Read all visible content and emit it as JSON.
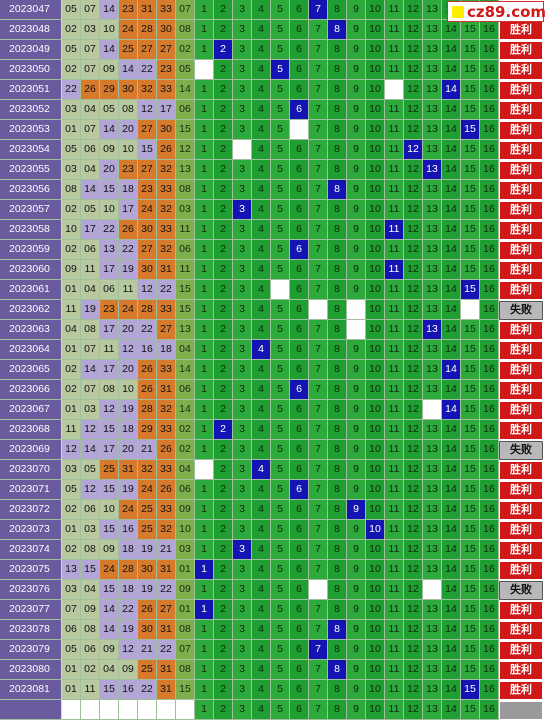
{
  "logo": {
    "text": "cz89.com"
  },
  "labels": {
    "win": "胜利",
    "lose": "失败"
  },
  "column_numbers": [
    "1",
    "2",
    "3",
    "4",
    "5",
    "6",
    "7",
    "8",
    "9",
    "10",
    "11",
    "12",
    "13",
    "14",
    "15",
    "16"
  ],
  "rows": [
    {
      "period": "2023047",
      "nums": [
        "05",
        "07",
        "14",
        "23",
        "31",
        "33",
        "07"
      ],
      "hit": 7,
      "result": "win"
    },
    {
      "period": "2023048",
      "nums": [
        "02",
        "03",
        "10",
        "24",
        "28",
        "30",
        "08"
      ],
      "hit": 8,
      "result": "win"
    },
    {
      "period": "2023049",
      "nums": [
        "05",
        "07",
        "14",
        "25",
        "27",
        "27",
        "02"
      ],
      "hit": 2,
      "result": "win"
    },
    {
      "period": "2023050",
      "nums": [
        "02",
        "07",
        "09",
        "14",
        "22",
        "23",
        "05"
      ],
      "hit": 5,
      "result": "win"
    },
    {
      "period": "2023051",
      "nums": [
        "22",
        "26",
        "29",
        "30",
        "32",
        "33",
        "14"
      ],
      "hit": 14,
      "result": "win"
    },
    {
      "period": "2023052",
      "nums": [
        "03",
        "04",
        "05",
        "08",
        "12",
        "17",
        "06"
      ],
      "hit": 6,
      "result": "win"
    },
    {
      "period": "2023053",
      "nums": [
        "01",
        "07",
        "14",
        "20",
        "27",
        "30",
        "15"
      ],
      "hit": 15,
      "result": "win"
    },
    {
      "period": "2023054",
      "nums": [
        "05",
        "06",
        "09",
        "10",
        "15",
        "26",
        "12"
      ],
      "hit": 12,
      "result": "win"
    },
    {
      "period": "2023055",
      "nums": [
        "03",
        "04",
        "20",
        "23",
        "27",
        "32",
        "13"
      ],
      "hit": 13,
      "result": "win"
    },
    {
      "period": "2023056",
      "nums": [
        "08",
        "14",
        "15",
        "18",
        "23",
        "33",
        "08"
      ],
      "hit": 8,
      "result": "win"
    },
    {
      "period": "2023057",
      "nums": [
        "02",
        "05",
        "10",
        "17",
        "24",
        "32",
        "03"
      ],
      "hit": 3,
      "result": "win"
    },
    {
      "period": "2023058",
      "nums": [
        "10",
        "17",
        "22",
        "26",
        "30",
        "33",
        "11"
      ],
      "hit": 11,
      "result": "win"
    },
    {
      "period": "2023059",
      "nums": [
        "02",
        "06",
        "13",
        "22",
        "27",
        "32",
        "06"
      ],
      "hit": 6,
      "result": "win"
    },
    {
      "period": "2023060",
      "nums": [
        "09",
        "11",
        "17",
        "19",
        "30",
        "31",
        "11"
      ],
      "hit": 11,
      "result": "win"
    },
    {
      "period": "2023061",
      "nums": [
        "01",
        "04",
        "06",
        "11",
        "12",
        "22",
        "15"
      ],
      "hit": 15,
      "result": "win"
    },
    {
      "period": "2023062",
      "nums": [
        "11",
        "19",
        "23",
        "24",
        "28",
        "33",
        "15"
      ],
      "hit": 0,
      "result": "lose"
    },
    {
      "period": "2023063",
      "nums": [
        "04",
        "08",
        "17",
        "20",
        "22",
        "27",
        "13"
      ],
      "hit": 13,
      "result": "win"
    },
    {
      "period": "2023064",
      "nums": [
        "01",
        "07",
        "11",
        "12",
        "16",
        "18",
        "04"
      ],
      "hit": 4,
      "result": "win"
    },
    {
      "period": "2023065",
      "nums": [
        "02",
        "14",
        "17",
        "20",
        "26",
        "33",
        "14"
      ],
      "hit": 14,
      "result": "win"
    },
    {
      "period": "2023066",
      "nums": [
        "02",
        "07",
        "08",
        "10",
        "26",
        "31",
        "06"
      ],
      "hit": 6,
      "result": "win"
    },
    {
      "period": "2023067",
      "nums": [
        "01",
        "03",
        "12",
        "19",
        "28",
        "32",
        "14"
      ],
      "hit": 14,
      "result": "win"
    },
    {
      "period": "2023068",
      "nums": [
        "11",
        "12",
        "15",
        "18",
        "29",
        "33",
        "02"
      ],
      "hit": 2,
      "result": "win"
    },
    {
      "period": "2023069",
      "nums": [
        "12",
        "14",
        "17",
        "20",
        "21",
        "26",
        "02"
      ],
      "hit": 0,
      "result": "lose"
    },
    {
      "period": "2023070",
      "nums": [
        "03",
        "05",
        "25",
        "31",
        "32",
        "33",
        "04"
      ],
      "hit": 4,
      "result": "win"
    },
    {
      "period": "2023071",
      "nums": [
        "05",
        "12",
        "15",
        "19",
        "24",
        "26",
        "06"
      ],
      "hit": 6,
      "result": "win"
    },
    {
      "period": "2023072",
      "nums": [
        "02",
        "06",
        "10",
        "24",
        "25",
        "33",
        "09"
      ],
      "hit": 9,
      "result": "win"
    },
    {
      "period": "2023073",
      "nums": [
        "01",
        "03",
        "15",
        "16",
        "25",
        "32",
        "10"
      ],
      "hit": 10,
      "result": "win"
    },
    {
      "period": "2023074",
      "nums": [
        "02",
        "08",
        "09",
        "18",
        "19",
        "21",
        "03"
      ],
      "hit": 3,
      "result": "win"
    },
    {
      "period": "2023075",
      "nums": [
        "13",
        "15",
        "24",
        "28",
        "30",
        "31",
        "01"
      ],
      "hit": 1,
      "result": "win"
    },
    {
      "period": "2023076",
      "nums": [
        "03",
        "04",
        "15",
        "18",
        "19",
        "22",
        "09"
      ],
      "hit": 0,
      "result": "lose"
    },
    {
      "period": "2023077",
      "nums": [
        "07",
        "09",
        "14",
        "22",
        "26",
        "27",
        "01"
      ],
      "hit": 1,
      "result": "win"
    },
    {
      "period": "2023078",
      "nums": [
        "06",
        "08",
        "14",
        "19",
        "30",
        "31",
        "08"
      ],
      "hit": 8,
      "result": "win"
    },
    {
      "period": "2023079",
      "nums": [
        "05",
        "06",
        "09",
        "12",
        "21",
        "22",
        "07"
      ],
      "hit": 7,
      "result": "win"
    },
    {
      "period": "2023080",
      "nums": [
        "01",
        "02",
        "04",
        "09",
        "25",
        "31",
        "08"
      ],
      "hit": 8,
      "result": "win"
    },
    {
      "period": "2023081",
      "nums": [
        "01",
        "11",
        "15",
        "16",
        "22",
        "31",
        "15"
      ],
      "hit": 15,
      "result": "win"
    }
  ],
  "blanks": [
    [],
    [],
    [],
    [
      1
    ],
    [
      11
    ],
    [],
    [
      6
    ],
    [
      3
    ],
    [],
    [],
    [],
    [],
    [],
    [],
    [
      5
    ],
    [
      7,
      9,
      15
    ],
    [
      9
    ],
    [],
    [],
    [],
    [
      13
    ],
    [],
    [],
    [
      1
    ],
    [],
    [],
    [],
    [],
    [],
    [
      7,
      13
    ],
    [],
    [],
    [],
    [],
    []
  ]
}
